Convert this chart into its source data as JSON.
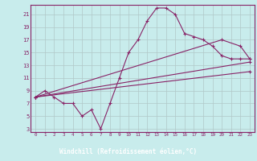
{
  "xlabel": "Windchill (Refroidissement éolien,°C)",
  "bg_color": "#c8ecec",
  "grid_color": "#b0c8c8",
  "line_color": "#882266",
  "label_bg": "#660066",
  "label_fg": "#ffffff",
  "xlim": [
    -0.5,
    23.5
  ],
  "ylim": [
    2.5,
    22.5
  ],
  "xticks": [
    0,
    1,
    2,
    3,
    4,
    5,
    6,
    7,
    8,
    9,
    10,
    11,
    12,
    13,
    14,
    15,
    16,
    17,
    18,
    19,
    20,
    21,
    22,
    23
  ],
  "yticks": [
    3,
    5,
    7,
    9,
    11,
    13,
    15,
    17,
    19,
    21
  ],
  "curve1_x": [
    0,
    1,
    2,
    3,
    4,
    5,
    6,
    7,
    8,
    9,
    10,
    11,
    12,
    13,
    14,
    15,
    16,
    17,
    18,
    19,
    20,
    21,
    22,
    23
  ],
  "curve1_y": [
    8,
    9,
    8,
    7,
    7,
    5,
    6,
    3,
    7,
    11,
    15,
    17,
    20,
    22,
    22,
    21,
    18,
    17.5,
    17,
    16,
    14.5,
    14,
    14,
    14
  ],
  "curve2_x": [
    0,
    20,
    22,
    23
  ],
  "curve2_y": [
    8,
    17,
    16,
    14
  ],
  "curve3_x": [
    0,
    23
  ],
  "curve3_y": [
    8,
    13.5
  ],
  "curve4_x": [
    0,
    23
  ],
  "curve4_y": [
    8,
    12
  ]
}
